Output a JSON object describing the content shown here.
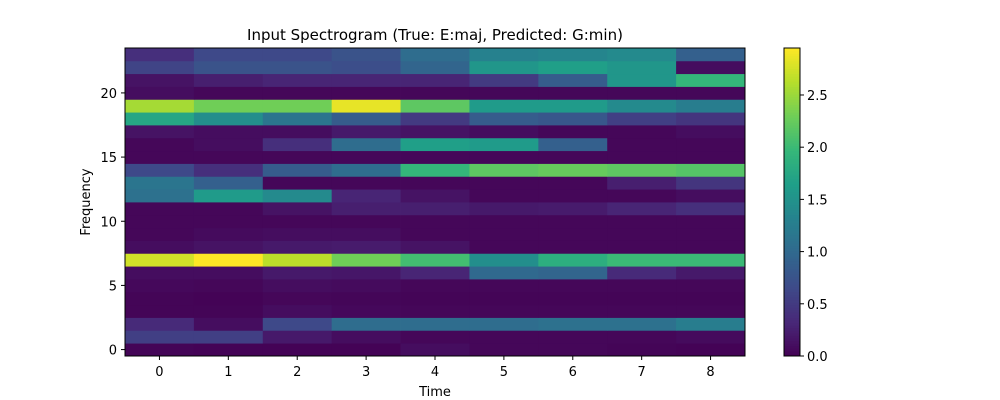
{
  "chart_data": {
    "type": "heatmap",
    "title": "Input Spectrogram (True: E:maj, Predicted: G:min)",
    "xlabel": "Time",
    "ylabel": "Frequency",
    "x": [
      0,
      1,
      2,
      3,
      4,
      5,
      6,
      7,
      8
    ],
    "y": [
      0,
      1,
      2,
      3,
      4,
      5,
      6,
      7,
      8,
      9,
      10,
      11,
      12,
      13,
      14,
      15,
      16,
      17,
      18,
      19,
      20,
      21,
      22,
      23
    ],
    "xlim": [
      -0.5,
      8.5
    ],
    "ylim": [
      -0.5,
      23.5
    ],
    "xticks": [
      0,
      1,
      2,
      3,
      4,
      5,
      6,
      7,
      8
    ],
    "yticks": [
      0,
      5,
      10,
      15,
      20
    ],
    "colormap": "viridis",
    "colorbar": {
      "min": 0.0,
      "max": 2.95,
      "ticks": [
        0.0,
        0.5,
        1.0,
        1.5,
        2.0,
        2.5
      ],
      "tick_labels": [
        "0.0",
        "0.5",
        "1.0",
        "1.5",
        "2.0",
        "2.5"
      ]
    },
    "values": [
      [
        0.03,
        0.02,
        0.02,
        0.02,
        0.1,
        0.05,
        0.05,
        0.03,
        0.02
      ],
      [
        0.55,
        0.55,
        0.2,
        0.1,
        0.05,
        0.05,
        0.05,
        0.05,
        0.08
      ],
      [
        0.35,
        0.1,
        0.65,
        1.05,
        1.05,
        1.05,
        1.1,
        1.1,
        1.25
      ],
      [
        0.03,
        0.03,
        0.1,
        0.06,
        0.05,
        0.05,
        0.05,
        0.05,
        0.05
      ],
      [
        0.03,
        0.02,
        0.05,
        0.04,
        0.03,
        0.03,
        0.03,
        0.03,
        0.03
      ],
      [
        0.06,
        0.05,
        0.1,
        0.08,
        0.05,
        0.05,
        0.05,
        0.05,
        0.05
      ],
      [
        0.1,
        0.1,
        0.2,
        0.18,
        0.3,
        1.0,
        0.95,
        0.35,
        0.2
      ],
      [
        2.75,
        2.95,
        2.65,
        2.3,
        2.05,
        1.45,
        1.85,
        2.0,
        2.0
      ],
      [
        0.1,
        0.15,
        0.2,
        0.22,
        0.15,
        0.05,
        0.05,
        0.05,
        0.05
      ],
      [
        0.05,
        0.08,
        0.1,
        0.1,
        0.05,
        0.05,
        0.05,
        0.05,
        0.05
      ],
      [
        0.05,
        0.05,
        0.05,
        0.05,
        0.05,
        0.05,
        0.05,
        0.05,
        0.05
      ],
      [
        0.05,
        0.05,
        0.15,
        0.25,
        0.25,
        0.2,
        0.22,
        0.3,
        0.4
      ],
      [
        1.1,
        1.6,
        1.4,
        0.3,
        0.15,
        0.05,
        0.05,
        0.05,
        0.1
      ],
      [
        1.15,
        0.9,
        0.05,
        0.05,
        0.05,
        0.05,
        0.05,
        0.25,
        0.45
      ],
      [
        0.65,
        0.4,
        0.85,
        1.05,
        1.95,
        2.2,
        2.25,
        2.2,
        2.15
      ],
      [
        0.05,
        0.05,
        0.05,
        0.05,
        0.05,
        0.05,
        0.05,
        0.05,
        0.05
      ],
      [
        0.05,
        0.1,
        0.4,
        1.05,
        1.65,
        1.6,
        0.9,
        0.05,
        0.05
      ],
      [
        0.15,
        0.1,
        0.1,
        0.2,
        0.15,
        0.1,
        0.05,
        0.05,
        0.1
      ],
      [
        1.75,
        1.45,
        1.15,
        0.85,
        0.5,
        0.85,
        0.8,
        0.55,
        0.45
      ],
      [
        2.55,
        2.3,
        2.3,
        2.85,
        2.2,
        1.6,
        1.6,
        1.4,
        1.25
      ],
      [
        0.1,
        0.05,
        0.05,
        0.05,
        0.05,
        0.05,
        0.05,
        0.05,
        0.05
      ],
      [
        0.15,
        0.25,
        0.3,
        0.3,
        0.3,
        0.5,
        0.85,
        1.55,
        1.95
      ],
      [
        0.6,
        0.75,
        0.75,
        0.7,
        0.95,
        1.55,
        1.65,
        1.55,
        0.1
      ],
      [
        0.4,
        0.65,
        0.65,
        0.75,
        1.05,
        1.3,
        1.35,
        1.4,
        0.9
      ]
    ]
  }
}
